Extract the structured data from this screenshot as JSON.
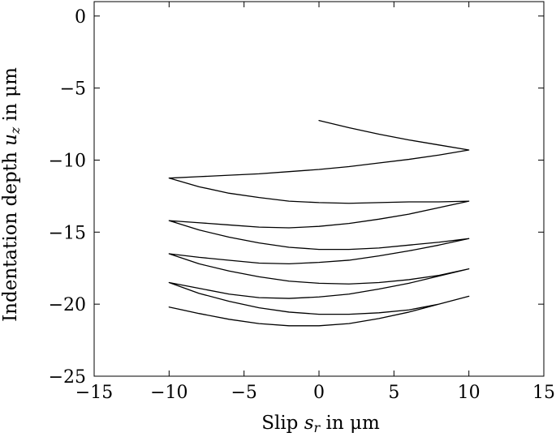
{
  "chart_data": {
    "type": "line",
    "title": "",
    "xlabel": {
      "prefix": "Slip ",
      "variable": "s",
      "subscript": "r",
      "suffix": " in μm"
    },
    "ylabel": {
      "prefix": "Indentation depth ",
      "variable": "u",
      "subscript": "z",
      "suffix": " in μm"
    },
    "xlim": [
      -15,
      15
    ],
    "ylim": [
      -25,
      1
    ],
    "xticks": [
      -15,
      -10,
      -5,
      0,
      5,
      10,
      15
    ],
    "yticks": [
      0,
      -5,
      -10,
      -15,
      -20,
      -25
    ],
    "xtick_labels": [
      "−15",
      "−10",
      "−5",
      "0",
      "5",
      "10",
      "15"
    ],
    "ytick_labels": [
      "0",
      "−5",
      "−10",
      "−15",
      "−20",
      "−25"
    ],
    "grid": false,
    "line_color": "#000000",
    "series": [
      {
        "x": [
          0,
          2,
          4,
          6,
          8,
          10,
          8,
          6,
          4,
          2,
          0,
          -2,
          -4,
          -6,
          -8,
          -10,
          -8,
          -6,
          -4,
          -2,
          0,
          2,
          4,
          6,
          8,
          10,
          8,
          6,
          4,
          2,
          0,
          -2,
          -4,
          -6,
          -8,
          -10,
          -8,
          -6,
          -4,
          -2,
          0,
          2,
          4,
          6,
          8,
          10,
          8,
          6,
          4,
          2,
          0,
          -2,
          -4,
          -6,
          -8,
          -10,
          -8,
          -6,
          -4,
          -2,
          0,
          2,
          4,
          6,
          8,
          10,
          8,
          6,
          4,
          2,
          0,
          -2,
          -4,
          -6,
          -8,
          -10,
          -8,
          -6,
          -4,
          -2,
          0,
          2,
          4,
          6,
          8,
          10,
          8,
          6,
          4,
          2,
          0,
          -2,
          -4,
          -6,
          -8,
          -10
        ],
        "y": [
          -7.25,
          -7.75,
          -8.2,
          -8.6,
          -8.95,
          -9.3,
          -9.65,
          -9.95,
          -10.2,
          -10.45,
          -10.65,
          -10.8,
          -10.95,
          -11.05,
          -11.15,
          -11.25,
          -11.85,
          -12.3,
          -12.6,
          -12.85,
          -12.95,
          -13.0,
          -12.95,
          -12.9,
          -12.9,
          -12.85,
          -13.3,
          -13.75,
          -14.1,
          -14.4,
          -14.6,
          -14.7,
          -14.65,
          -14.5,
          -14.35,
          -14.2,
          -14.85,
          -15.35,
          -15.75,
          -16.05,
          -16.2,
          -16.2,
          -16.1,
          -15.9,
          -15.7,
          -15.45,
          -15.9,
          -16.3,
          -16.65,
          -16.95,
          -17.1,
          -17.2,
          -17.15,
          -16.95,
          -16.75,
          -16.5,
          -17.2,
          -17.7,
          -18.1,
          -18.4,
          -18.55,
          -18.6,
          -18.5,
          -18.3,
          -18.0,
          -17.55,
          -18.05,
          -18.55,
          -18.95,
          -19.3,
          -19.5,
          -19.6,
          -19.55,
          -19.3,
          -18.9,
          -18.5,
          -19.25,
          -19.8,
          -20.25,
          -20.55,
          -20.7,
          -20.7,
          -20.6,
          -20.4,
          -20.0,
          -19.45,
          -20.0,
          -20.55,
          -21.0,
          -21.35,
          -21.5,
          -21.5,
          -21.35,
          -21.05,
          -20.65,
          -20.2
        ]
      }
    ]
  }
}
